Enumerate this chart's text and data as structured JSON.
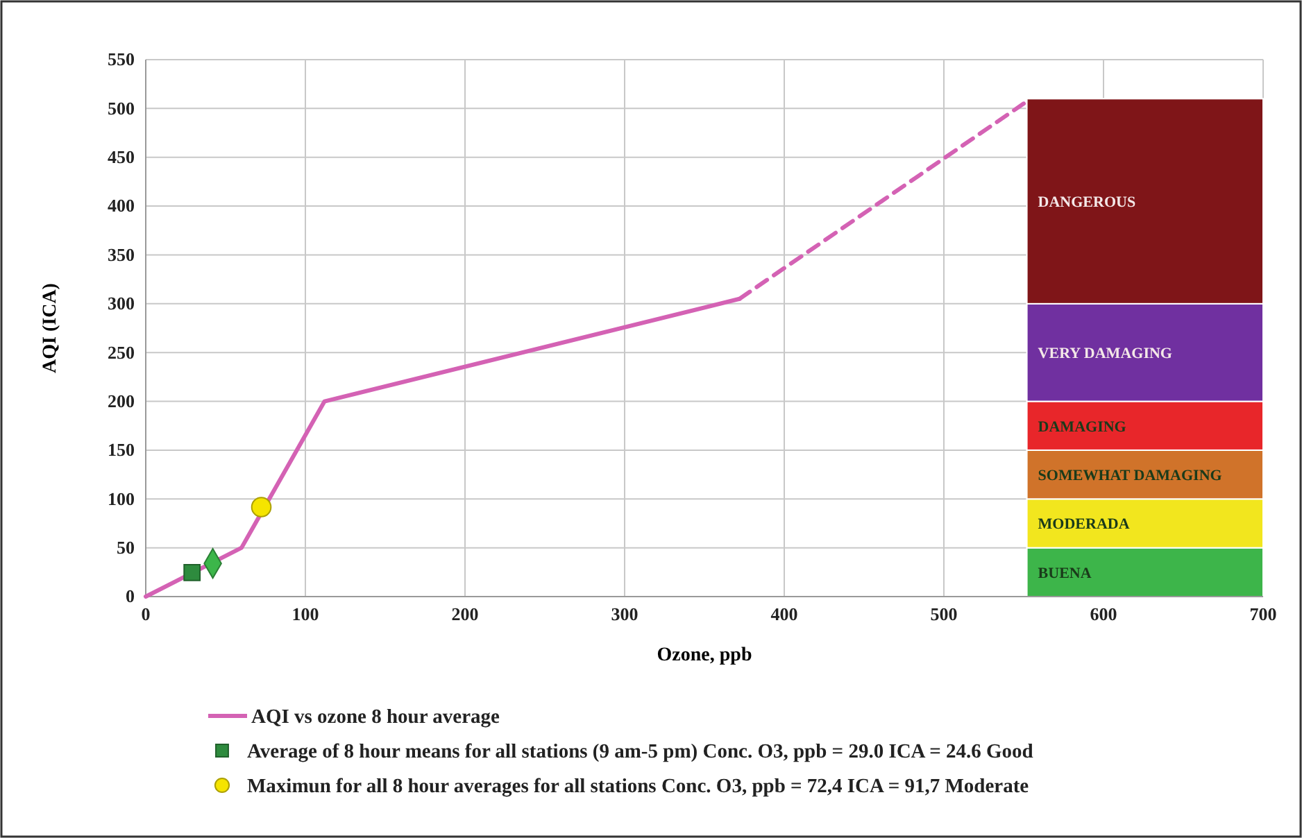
{
  "chart_data": {
    "type": "line",
    "xlabel": "Ozone, ppb",
    "ylabel": "AQI  (ICA)",
    "xlim": [
      0,
      700
    ],
    "xticks": [
      0,
      100,
      200,
      300,
      400,
      500,
      600,
      700
    ],
    "ylim": [
      0,
      550
    ],
    "yticks": [
      0,
      50,
      100,
      150,
      200,
      250,
      300,
      350,
      400,
      450,
      500,
      550
    ],
    "grid": true,
    "legend": "bottom",
    "series": [
      {
        "name": "AQI vs ozone 8 hour average",
        "color": "#d462b4",
        "x": [
          0,
          60,
          112,
          372
        ],
        "values": [
          0,
          50,
          200,
          305
        ],
        "line_style": "solid",
        "marker": "none"
      },
      {
        "color": "#d462b4",
        "x": [
          372,
          550
        ],
        "values": [
          305,
          505
        ],
        "line_style": "dashed",
        "marker": "none"
      },
      {
        "type": "scatter",
        "name": "Average of 8 hour means for all stations (9 am-5 pm) Conc. O3, ppb = 29.0 ICA = 24.6 Good",
        "color": "#2e8b3e",
        "x": [
          29.0
        ],
        "values": [
          24.6
        ],
        "marker": "square"
      },
      {
        "type": "scatter",
        "color": "#3cb64a",
        "x": [
          42
        ],
        "values": [
          34
        ],
        "marker": "diamond"
      },
      {
        "type": "scatter",
        "name": "Maximun for all 8 hour averages for all stations  Conc. O3, ppb = 72,4 ICA = 91,7 Moderate",
        "color": "#f5e400",
        "x": [
          72.4
        ],
        "values": [
          91.7
        ],
        "marker": "circle"
      }
    ],
    "bands": [
      {
        "axis": "y",
        "from": 0,
        "to": 50,
        "label": "BUENA",
        "color": "#3db54a"
      },
      {
        "axis": "y",
        "from": 50,
        "to": 100,
        "label": "MODERADA",
        "color": "#f2e61e"
      },
      {
        "axis": "y",
        "from": 100,
        "to": 150,
        "label": "SOMEWHAT DAMAGING",
        "color": "#d0732a"
      },
      {
        "axis": "y",
        "from": 150,
        "to": 200,
        "label": "DAMAGING",
        "color": "#e8262a"
      },
      {
        "axis": "y",
        "from": 200,
        "to": 300,
        "label": "VERY DAMAGING",
        "color": "#7030a0"
      },
      {
        "axis": "y",
        "from": 300,
        "to": 510,
        "label": "DANGEROUS",
        "color": "#7f1518"
      }
    ]
  }
}
